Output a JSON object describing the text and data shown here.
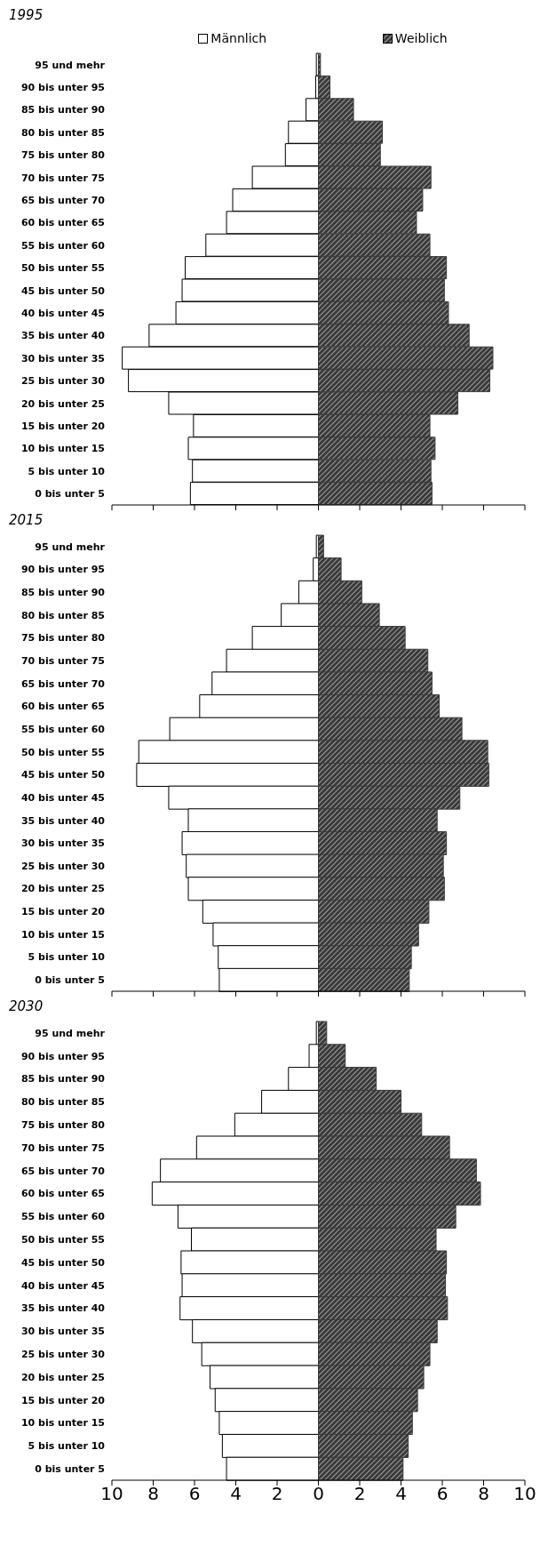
{
  "chart_data": [
    {
      "type": "bar",
      "title": "1995",
      "orientation": "horizontal",
      "stacked": true,
      "legend": "top",
      "tick_labels": "y",
      "grid": false,
      "categories": [
        "95 und mehr",
        "90 bis unter 95",
        "85 bis unter 90",
        "80 bis unter 85",
        "75 bis unter 80",
        "70 bis unter 75",
        "65 bis unter 70",
        "60 bis unter 65",
        "55 bis unter 60",
        "50 bis unter 55",
        "45 bis unter 50",
        "40 bis unter 45",
        "35 bis unter 40",
        "30 bis unter 35",
        "25 bis unter 30",
        "20 bis unter 25",
        "15 bis unter 20",
        "10 bis unter 15",
        "5 bis unter 10",
        "0 bis unter 5"
      ],
      "xlim": [
        -10,
        10
      ],
      "xticks": [
        {
          "value": -10,
          "label": null
        },
        {
          "value": -8,
          "label": null
        },
        {
          "value": -6,
          "label": null
        },
        {
          "value": -4,
          "label": null
        },
        {
          "value": -2,
          "label": null
        },
        {
          "value": 0,
          "label": null
        },
        {
          "value": 2,
          "label": null
        },
        {
          "value": 4,
          "label": null
        },
        {
          "value": 6,
          "label": null
        },
        {
          "value": 8,
          "label": null
        },
        {
          "value": 10,
          "label": null
        }
      ],
      "series": [
        {
          "name": "Männlich",
          "color": "#ffffff",
          "values": [
            -0.1,
            -0.13,
            -0.6,
            -1.45,
            -1.6,
            -3.2,
            -4.15,
            -4.45,
            -5.45,
            -6.45,
            -6.6,
            -6.9,
            -8.2,
            -9.5,
            -9.2,
            -7.25,
            -6.05,
            -6.3,
            -6.1,
            -6.2
          ]
        },
        {
          "name": "Weiblich",
          "color": "#3a3a3a",
          "values": [
            0.1,
            0.56,
            1.7,
            3.1,
            3.0,
            5.45,
            5.05,
            4.75,
            5.4,
            6.2,
            6.1,
            6.3,
            7.3,
            8.45,
            8.3,
            6.75,
            5.4,
            5.65,
            5.45,
            5.5
          ]
        }
      ]
    },
    {
      "type": "bar",
      "title": "2015",
      "orientation": "horizontal",
      "stacked": true,
      "tick_labels": "y",
      "grid": false,
      "categories": [
        "95 und mehr",
        "90 bis unter 95",
        "85 bis unter 90",
        "80 bis unter 85",
        "75 bis unter 80",
        "70 bis unter 75",
        "65 bis unter 70",
        "60 bis unter 65",
        "55 bis unter 60",
        "50 bis unter 55",
        "45 bis unter 50",
        "40 bis unter 45",
        "35 bis unter 40",
        "30 bis unter 35",
        "25 bis unter 30",
        "20 bis unter 25",
        "15 bis unter 20",
        "10 bis unter 15",
        "5 bis unter 10",
        "0 bis unter 5"
      ],
      "xlim": [
        -10,
        10
      ],
      "xticks": [
        {
          "value": -10,
          "label": null
        },
        {
          "value": -8,
          "label": null
        },
        {
          "value": -6,
          "label": null
        },
        {
          "value": -4,
          "label": null
        },
        {
          "value": -2,
          "label": null
        },
        {
          "value": 0,
          "label": null
        },
        {
          "value": 2,
          "label": null
        },
        {
          "value": 4,
          "label": null
        },
        {
          "value": 6,
          "label": null
        },
        {
          "value": 8,
          "label": null
        },
        {
          "value": 10,
          "label": null
        }
      ],
      "series": [
        {
          "color": "#ffffff",
          "values": [
            -0.1,
            -0.25,
            -0.95,
            -1.8,
            -3.2,
            -4.45,
            -5.15,
            -5.75,
            -7.2,
            -8.7,
            -8.8,
            -7.25,
            -6.3,
            -6.6,
            -6.4,
            -6.3,
            -5.6,
            -5.1,
            -4.85,
            -4.8
          ]
        },
        {
          "color": "#3a3a3a",
          "values": [
            0.25,
            1.1,
            2.1,
            2.95,
            4.2,
            5.3,
            5.5,
            5.85,
            6.95,
            8.2,
            8.25,
            6.85,
            5.75,
            6.2,
            6.05,
            6.1,
            5.35,
            4.85,
            4.5,
            4.4
          ]
        }
      ]
    },
    {
      "type": "bar",
      "title": "2030",
      "orientation": "horizontal",
      "stacked": true,
      "grid": false,
      "categories": [
        "95 und mehr",
        "90 bis unter 95",
        "85 bis unter 90",
        "80 bis unter 85",
        "75 bis unter 80",
        "70 bis unter 75",
        "65 bis unter 70",
        "60 bis unter 65",
        "55 bis unter 60",
        "50 bis unter 55",
        "45 bis unter 50",
        "40 bis unter 45",
        "35 bis unter 40",
        "30 bis unter 35",
        "25 bis unter 30",
        "20 bis unter 25",
        "15 bis unter 20",
        "10 bis unter 15",
        "5 bis unter 10",
        "0 bis unter 5"
      ],
      "xlim": [
        -10,
        10
      ],
      "xticks": [
        {
          "value": -10,
          "label": "10"
        },
        {
          "value": -8,
          "label": "8"
        },
        {
          "value": -6,
          "label": "6"
        },
        {
          "value": -4,
          "label": "4"
        },
        {
          "value": -2,
          "label": "2"
        },
        0,
        2,
        4,
        6,
        8,
        10
      ],
      "series": [
        {
          "color": "#ffffff",
          "values": [
            -0.1,
            -0.45,
            -1.45,
            -2.75,
            -4.05,
            -5.9,
            -7.65,
            -8.05,
            -6.8,
            -6.15,
            -6.65,
            -6.6,
            -6.7,
            -6.1,
            -5.65,
            -5.25,
            -5.0,
            -4.8,
            -4.65,
            -4.45
          ]
        },
        {
          "color": "#3a3a3a",
          "values": [
            0.4,
            1.3,
            2.8,
            4.0,
            5.0,
            6.35,
            7.65,
            7.85,
            6.65,
            5.7,
            6.2,
            6.15,
            6.25,
            5.75,
            5.4,
            5.1,
            4.8,
            4.55,
            4.35,
            4.1
          ]
        }
      ]
    }
  ]
}
